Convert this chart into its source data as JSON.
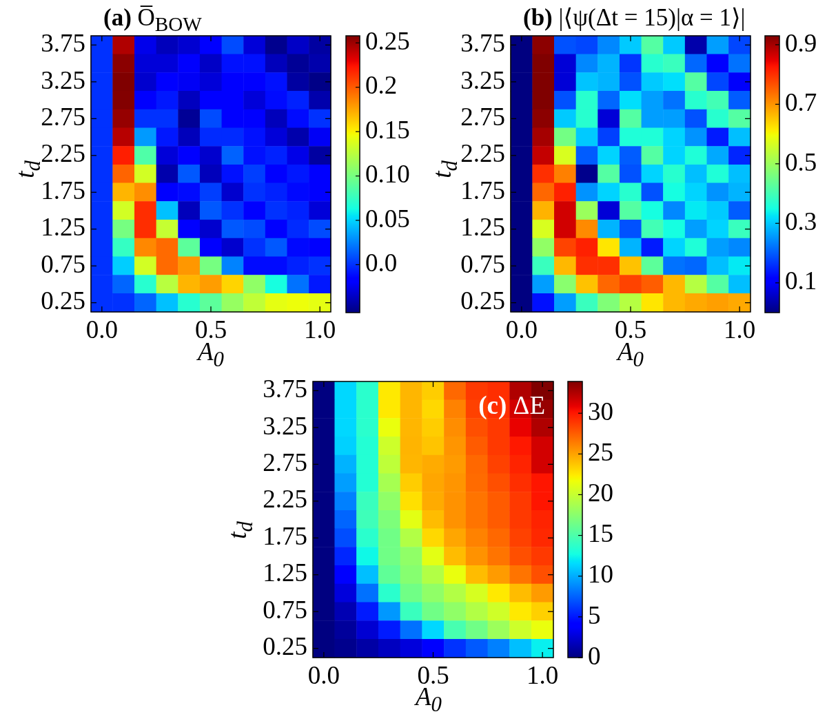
{
  "chart_data": [
    {
      "type": "heatmap",
      "title": "(a) O̅$_{BOW}$",
      "xlabel": "A$_{0}$",
      "ylabel": "t$_{d}$",
      "categories": [
        "0.0",
        null,
        null,
        null,
        null,
        "0.5",
        null,
        null,
        null,
        null,
        "1.0"
      ],
      "y_categories": [
        "3.75",
        null,
        "3.25",
        null,
        "2.75",
        null,
        "2.25",
        null,
        "1.75",
        null,
        "1.25",
        null,
        "0.75",
        null,
        "0.25"
      ],
      "cells": [
        [
          0.0,
          0.245,
          -0.025,
          -0.038,
          -0.032,
          -0.018,
          0.008,
          -0.03,
          -0.05,
          -0.035,
          -0.045
        ],
        [
          0.0,
          0.255,
          -0.03,
          -0.03,
          -0.02,
          -0.035,
          -0.01,
          -0.01,
          -0.038,
          -0.048,
          -0.042
        ],
        [
          0.0,
          0.258,
          -0.033,
          -0.018,
          -0.022,
          -0.03,
          -0.018,
          -0.018,
          -0.01,
          -0.045,
          -0.052
        ],
        [
          0.0,
          0.257,
          -0.02,
          -0.008,
          -0.037,
          -0.016,
          -0.018,
          -0.03,
          -0.012,
          -0.005,
          -0.042
        ],
        [
          0.0,
          0.252,
          0.0,
          0.0,
          -0.048,
          0.008,
          -0.016,
          -0.018,
          -0.038,
          -0.012,
          0.0
        ],
        [
          0.0,
          0.243,
          0.032,
          -0.008,
          -0.038,
          -0.002,
          -0.002,
          -0.01,
          -0.03,
          -0.042,
          -0.022
        ],
        [
          0.0,
          0.22,
          0.085,
          -0.03,
          -0.018,
          -0.033,
          0.015,
          -0.01,
          -0.005,
          -0.026,
          -0.045
        ],
        [
          0.0,
          0.197,
          0.135,
          -0.042,
          0.012,
          -0.038,
          -0.01,
          0.004,
          -0.017,
          -0.008,
          -0.017
        ],
        [
          0.0,
          0.17,
          0.183,
          -0.018,
          -0.012,
          0.004,
          -0.033,
          0.0,
          -0.005,
          -0.013,
          -0.017
        ],
        [
          0.0,
          0.135,
          0.215,
          0.044,
          -0.038,
          0.012,
          0.0,
          -0.017,
          0.0,
          -0.005,
          -0.03
        ],
        [
          0.0,
          0.1,
          0.215,
          0.13,
          -0.018,
          -0.033,
          0.012,
          0.008,
          -0.018,
          -0.002,
          0.008
        ],
        [
          0.0,
          0.075,
          0.185,
          0.195,
          0.09,
          -0.018,
          -0.033,
          0.0,
          0.012,
          -0.013,
          -0.017
        ],
        [
          0.0,
          0.048,
          0.135,
          0.195,
          0.18,
          0.1,
          0.025,
          -0.012,
          -0.012,
          -0.005,
          0.0
        ],
        [
          0.0,
          0.016,
          0.07,
          0.125,
          0.17,
          0.178,
          0.16,
          0.11,
          0.064,
          0.02,
          -0.008
        ],
        [
          0.0,
          0.0,
          0.016,
          0.044,
          0.07,
          0.09,
          0.112,
          0.128,
          0.142,
          0.145,
          0.142
        ]
      ],
      "clim": [
        -0.054,
        0.258
      ],
      "cticks": [
        {
          "value": 0,
          "label": "0.0"
        },
        0.05,
        {
          "value": 0.1,
          "label": "0.10"
        },
        0.15,
        0.2,
        0.25
      ]
    },
    {
      "type": "heatmap",
      "title": "(b) |⟨ψ(Δt = 15)|α = 1⟩|",
      "xlabel": "A$_{0}$",
      "ylabel": "t$_{d}$",
      "categories": [
        "0.0",
        null,
        null,
        null,
        null,
        "0.5",
        null,
        null,
        null,
        null,
        "1.0"
      ],
      "y_categories": [
        "3.75",
        null,
        "3.25",
        null,
        "2.75",
        null,
        "2.25",
        null,
        "1.75",
        null,
        "1.25",
        null,
        "0.75",
        null,
        "0.25"
      ],
      "cells": [
        [
          0,
          0.92,
          0.19,
          0.18,
          0.24,
          0.3,
          0.42,
          0.3,
          0.035,
          0.26,
          0.18
        ],
        [
          0,
          0.93,
          0.07,
          0.24,
          0.28,
          0.165,
          0.37,
          0.39,
          0.21,
          0.11,
          0.22
        ],
        [
          0,
          0.93,
          0.07,
          0.295,
          0.28,
          0.19,
          0.3,
          0.32,
          0.42,
          0.18,
          0.1
        ],
        [
          0,
          0.93,
          0.19,
          0.37,
          0.21,
          0.32,
          0.26,
          0.22,
          0.37,
          0.4,
          0.2
        ],
        [
          0,
          0.92,
          0.3,
          0.37,
          0.07,
          0.42,
          0.26,
          0.26,
          0.19,
          0.37,
          0.42
        ],
        [
          0,
          0.9,
          0.455,
          0.3,
          0.175,
          0.36,
          0.36,
          0.31,
          0.25,
          0.14,
          0.29
        ],
        [
          0,
          0.875,
          0.57,
          0.2,
          0.31,
          0.2,
          0.42,
          0.31,
          0.36,
          0.27,
          0.15
        ],
        [
          0,
          0.8,
          0.72,
          0.01,
          0.42,
          0.19,
          0.31,
          0.37,
          0.29,
          0.36,
          0.29
        ],
        [
          0,
          0.745,
          0.815,
          0.25,
          0.31,
          0.37,
          0.19,
          0.35,
          0.31,
          0.25,
          0.28
        ],
        [
          0,
          0.67,
          0.865,
          0.5,
          0.07,
          0.42,
          0.35,
          0.24,
          0.33,
          0.3,
          0.2
        ],
        [
          0,
          0.57,
          0.865,
          0.71,
          0.28,
          0.19,
          0.4,
          0.35,
          0.26,
          0.31,
          0.39
        ],
        [
          0,
          0.49,
          0.78,
          0.815,
          0.62,
          0.28,
          0.14,
          0.31,
          0.36,
          0.26,
          0.24
        ],
        [
          0,
          0.39,
          0.665,
          0.8,
          0.8,
          0.655,
          0.43,
          0.22,
          0.21,
          0.29,
          0.33
        ],
        [
          0,
          0.26,
          0.48,
          0.655,
          0.745,
          0.78,
          0.755,
          0.665,
          0.53,
          0.42,
          0.29
        ],
        [
          0,
          0.13,
          0.26,
          0.39,
          0.47,
          0.53,
          0.62,
          0.665,
          0.68,
          0.69,
          0.68
        ]
      ],
      "clim": [
        0,
        0.93
      ],
      "cticks": [
        0.1,
        0.3,
        0.5,
        0.7,
        0.9
      ]
    },
    {
      "type": "heatmap",
      "annotations": [
        "(c) ΔE"
      ],
      "xlabel": "A$_{0}$",
      "ylabel": "t$_{d}$",
      "categories": [
        "0.0",
        null,
        null,
        null,
        null,
        "0.5",
        null,
        null,
        null,
        null,
        "1.0"
      ],
      "y_categories": [
        "3.75",
        null,
        "3.25",
        null,
        "2.75",
        null,
        "2.25",
        null,
        "1.75",
        null,
        "1.25",
        null,
        "0.75",
        null,
        "0.25"
      ],
      "cells": [
        [
          0,
          11.4,
          13.6,
          22.5,
          24.3,
          23.5,
          27.1,
          28.8,
          29.2,
          32.5,
          33.9
        ],
        [
          0,
          11.4,
          13.6,
          22.5,
          24.3,
          23.1,
          26.2,
          28.5,
          29.2,
          31.5,
          33.2
        ],
        [
          0,
          11.4,
          13.6,
          21.5,
          24.3,
          23.5,
          25.8,
          28.0,
          28.8,
          30.8,
          32.5
        ],
        [
          0,
          11.2,
          13.3,
          20.3,
          24.4,
          23.8,
          25.5,
          27.6,
          28.8,
          30.0,
          31.5
        ],
        [
          0,
          10.2,
          13.3,
          19.7,
          24.3,
          24.7,
          25.3,
          27.1,
          28.5,
          29.6,
          31.5
        ],
        [
          0,
          9.5,
          13.3,
          18.7,
          23.5,
          24.9,
          25.5,
          27.0,
          28.0,
          29.2,
          30.1
        ],
        [
          0,
          8.5,
          14.2,
          17.8,
          22.8,
          24.7,
          25.6,
          26.7,
          27.6,
          28.8,
          30.1
        ],
        [
          0,
          7.6,
          14.4,
          17.0,
          21.2,
          24.1,
          25.6,
          26.7,
          27.6,
          28.8,
          29.6
        ],
        [
          0,
          6.8,
          13.6,
          16.5,
          19.2,
          23.1,
          24.9,
          26.2,
          27.1,
          28.5,
          29.4
        ],
        [
          0,
          5.5,
          12.5,
          16.5,
          17.8,
          21.2,
          24.1,
          25.6,
          26.7,
          28.0,
          28.8
        ],
        [
          0,
          3.9,
          10.6,
          15.8,
          17.4,
          19.2,
          21.5,
          24.1,
          25.3,
          26.7,
          28.0
        ],
        [
          0,
          2.7,
          8.0,
          13.6,
          16.5,
          17.8,
          19.2,
          20.7,
          22.5,
          24.1,
          25.3
        ],
        [
          0,
          1.5,
          5.1,
          9.3,
          14.2,
          16.5,
          17.8,
          19.2,
          20.4,
          22.5,
          23.4
        ],
        [
          0,
          0.8,
          2.4,
          5.1,
          8.0,
          11.4,
          14.8,
          16.5,
          18.3,
          20.3,
          21.5
        ],
        [
          0,
          0.4,
          1.1,
          1.9,
          2.7,
          3.9,
          5.9,
          7.2,
          8.5,
          10.6,
          12.2
        ]
      ],
      "clim": [
        0,
        33.9
      ],
      "cticks": [
        0,
        5,
        10,
        15,
        20,
        25,
        30
      ]
    }
  ]
}
